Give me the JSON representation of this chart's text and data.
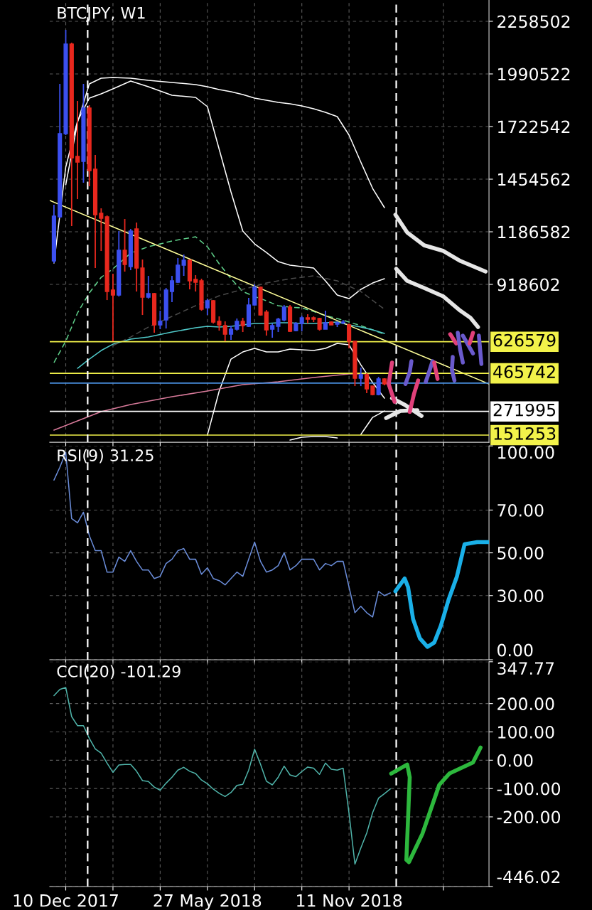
{
  "chart_data": [
    {
      "type": "candlestick",
      "title": "BTCJPY, W1",
      "x": [
        "2017-11-26",
        "2017-12-03",
        "2017-12-10",
        "2017-12-17",
        "2017-12-24",
        "2017-12-31",
        "2018-01-07",
        "2018-01-14",
        "2018-01-21",
        "2018-01-28",
        "2018-02-04",
        "2018-02-11",
        "2018-02-18",
        "2018-02-25",
        "2018-03-04",
        "2018-03-11",
        "2018-03-18",
        "2018-03-25",
        "2018-04-01",
        "2018-04-08",
        "2018-04-15",
        "2018-04-22",
        "2018-04-29",
        "2018-05-06",
        "2018-05-13",
        "2018-05-20",
        "2018-05-27",
        "2018-06-03",
        "2018-06-10",
        "2018-06-17",
        "2018-06-24",
        "2018-07-01",
        "2018-07-08",
        "2018-07-15",
        "2018-07-22",
        "2018-07-29",
        "2018-08-05",
        "2018-08-12",
        "2018-08-19",
        "2018-08-26",
        "2018-09-02",
        "2018-09-09",
        "2018-09-16",
        "2018-09-23",
        "2018-09-30",
        "2018-10-07",
        "2018-10-14",
        "2018-10-21",
        "2018-10-28",
        "2018-11-04",
        "2018-11-11",
        "2018-11-18",
        "2018-11-25",
        "2018-12-02",
        "2018-12-09",
        "2018-12-16",
        "2018-12-23"
      ],
      "ohlc": [
        [
          1038100,
          1324200,
          1027200,
          1266200
        ],
        [
          1262600,
          1939700,
          1255400,
          1686300
        ],
        [
          1686300,
          2214900,
          1679000,
          2142500
        ],
        [
          2142500,
          2149700,
          1215500,
          1563100
        ],
        [
          1570400,
          1852800,
          1353100,
          1541400
        ],
        [
          1545000,
          1939700,
          1436400,
          1816600
        ],
        [
          1816600,
          1831100,
          1418300,
          1498000
        ],
        [
          1505200,
          1577600,
          1001900,
          1273500
        ],
        [
          1280700,
          1306000,
          1088800,
          1255400
        ],
        [
          1262600,
          1269800,
          838900,
          882400
        ],
        [
          889600,
          972900,
          628900,
          864300
        ],
        [
          864300,
          1190200,
          857000,
          1092400
        ],
        [
          1092400,
          1251700,
          983800,
          1020000
        ],
        [
          1009100,
          1201000,
          991000,
          1190200
        ],
        [
          1201000,
          1233600,
          882400,
          1001900
        ],
        [
          1001900,
          1045300,
          762900,
          853400
        ],
        [
          853400,
          962100,
          846200,
          871500
        ],
        [
          871500,
          875100,
          672400,
          712200
        ],
        [
          712200,
          784600,
          690500,
          730300
        ],
        [
          737500,
          900500,
          694100,
          889600
        ],
        [
          882400,
          962100,
          828100,
          936700
        ],
        [
          929500,
          1052600,
          925800,
          1016400
        ],
        [
          1016400,
          1070700,
          962100,
          1041700
        ],
        [
          1041700,
          1045300,
          893300,
          936700
        ],
        [
          943900,
          965700,
          882400,
          929500
        ],
        [
          936700,
          947600,
          784600,
          791900
        ],
        [
          799100,
          846200,
          762900,
          835300
        ],
        [
          835300,
          838900,
          719400,
          726700
        ],
        [
          730300,
          755700,
          683200,
          712200
        ],
        [
          708600,
          730300,
          628900,
          665100
        ],
        [
          665100,
          708600,
          636200,
          690500
        ],
        [
          690500,
          744800,
          683200,
          730300
        ],
        [
          730300,
          748400,
          676000,
          708600
        ],
        [
          705000,
          849800,
          701300,
          813600
        ],
        [
          813600,
          918600,
          810000,
          904100
        ],
        [
          904100,
          907700,
          759300,
          762900
        ],
        [
          777400,
          788200,
          657900,
          686900
        ],
        [
          690500,
          719400,
          647000,
          708600
        ],
        [
          705000,
          748400,
          676000,
          741200
        ],
        [
          737500,
          813600,
          730300,
          802700
        ],
        [
          802700,
          813600,
          676000,
          679600
        ],
        [
          683200,
          726700,
          679600,
          719400
        ],
        [
          719400,
          759300,
          679600,
          748400
        ],
        [
          748400,
          766500,
          719400,
          741200
        ],
        [
          748400,
          755700,
          726700,
          741200
        ],
        [
          744800,
          748400,
          683200,
          690500
        ],
        [
          690500,
          784600,
          690500,
          723100
        ],
        [
          726700,
          730300,
          712200,
          712200
        ],
        [
          715800,
          730300,
          701300,
          723100
        ],
        [
          723100,
          737500,
          715800,
          726700
        ],
        [
          712200,
          719400,
          592700,
          628900
        ],
        [
          628900,
          628900,
          400800,
          440600
        ],
        [
          440600,
          494900,
          400800,
          458700
        ],
        [
          458700,
          466000,
          364600,
          386300
        ],
        [
          400800,
          400800,
          353700,
          357300
        ],
        [
          357300,
          447900,
          353700,
          437000
        ],
        [
          437000,
          440600,
          404400,
          411700
        ]
      ],
      "colors": [
        "#3c50f0",
        "#3c50f0",
        "#3c50f0",
        "#e8281e",
        "#e8281e",
        "#3c50f0",
        "#e8281e",
        "#e8281e",
        "#e8281e",
        "#e8281e",
        "#e8281e",
        "#3c50f0",
        "#e8281e",
        "#3c50f0",
        "#e8281e",
        "#e8281e",
        "#3c50f0",
        "#e8281e",
        "#3c50f0",
        "#3c50f0",
        "#3c50f0",
        "#3c50f0",
        "#3c50f0",
        "#e8281e",
        "#e8281e",
        "#e8281e",
        "#3c50f0",
        "#e8281e",
        "#e8281e",
        "#e8281e",
        "#3c50f0",
        "#3c50f0",
        "#e8281e",
        "#3c50f0",
        "#3c50f0",
        "#e8281e",
        "#e8281e",
        "#3c50f0",
        "#3c50f0",
        "#3c50f0",
        "#e8281e",
        "#3c50f0",
        "#3c50f0",
        "#e8281e",
        "#e8281e",
        "#e8281e",
        "#3c50f0",
        "#e8281e",
        "#3c50f0",
        "#3c50f0",
        "#e8281e",
        "#e8281e",
        "#3c50f0",
        "#e8281e",
        "#e8281e",
        "#3c50f0",
        "#e8281e"
      ],
      "series": [
        {
          "type": "line",
          "color": "#ffffff",
          "x": [
            "2017-12-10",
            "2017-12-24",
            "2018-01-07",
            "2018-01-21",
            "2018-02-04",
            "2018-02-25",
            "2018-03-18",
            "2018-04-15",
            "2018-05-13",
            "2018-05-27",
            "2018-06-10",
            "2018-06-24",
            "2018-07-08",
            "2018-07-22",
            "2018-08-05",
            "2018-08-19",
            "2018-09-02",
            "2018-09-16",
            "2018-09-30",
            "2018-10-14",
            "2018-10-28",
            "2018-11-11",
            "2018-11-25",
            "2018-12-09",
            "2018-12-23"
          ],
          "values": [
            1425500,
            1744200,
            1939700,
            1968700,
            1972300,
            1968700,
            1957800,
            1947000,
            1936200,
            1925300,
            1910800,
            1899900,
            1885400,
            1867300,
            1856400,
            1845600,
            1838400,
            1827500,
            1813000,
            1794900,
            1773200,
            1679000,
            1541400,
            1407400,
            1309700
          ]
        },
        {
          "type": "line",
          "color": "#ffffff",
          "x": [
            "2017-11-26",
            "2017-12-10",
            "2017-12-24",
            "2018-01-07",
            "2018-01-21",
            "2018-02-04",
            "2018-02-25",
            "2018-03-18",
            "2018-04-15",
            "2018-05-13",
            "2018-05-27",
            "2018-06-10",
            "2018-06-24",
            "2018-07-08",
            "2018-07-22",
            "2018-08-05",
            "2018-08-19",
            "2018-09-02",
            "2018-09-16",
            "2018-09-30",
            "2018-10-14",
            "2018-10-28",
            "2018-11-11",
            "2018-11-25",
            "2018-12-09",
            "2018-12-23"
          ],
          "values": [
            1027200,
            1516100,
            1751400,
            1867300,
            1889000,
            1914400,
            1954200,
            1925300,
            1881800,
            1870900,
            1823900,
            1606600,
            1389300,
            1190200,
            1125000,
            1081600,
            1034500,
            1016400,
            1009100,
            1001900,
            936700,
            864300,
            846200,
            893300,
            925800,
            947600
          ]
        },
        {
          "type": "line",
          "color": "#ffffff",
          "x": [
            "2018-05-27",
            "2018-06-10",
            "2018-06-24",
            "2018-07-08",
            "2018-07-22",
            "2018-08-05",
            "2018-08-19",
            "2018-09-02",
            "2018-09-16",
            "2018-09-30",
            "2018-10-14",
            "2018-10-28",
            "2018-11-11",
            "2018-11-25",
            "2018-12-09",
            "2018-12-23"
          ],
          "values": [
            150900,
            375500,
            538400,
            574600,
            592700,
            574600,
            574600,
            589100,
            585500,
            581900,
            592700,
            618100,
            610800,
            509400,
            418900,
            339200
          ]
        },
        {
          "type": "line",
          "color": "#ffffff",
          "x": [
            "2018-09-02",
            "2018-09-16",
            "2018-09-30",
            "2018-10-14",
            "2018-10-28",
            "2018-11-11",
            "2018-11-25",
            "2018-12-09",
            "2018-12-23"
          ],
          "values": [
            125600,
            140100,
            143700,
            143700,
            136500,
            null,
            154600,
            241500,
            274100
          ]
        },
        {
          "type": "line",
          "color": "#5fd08a",
          "line_style": "dashed",
          "x": [
            "2017-11-26",
            "2017-12-10",
            "2017-12-24",
            "2018-01-07",
            "2018-01-21",
            "2018-02-04",
            "2018-02-25",
            "2018-03-18",
            "2018-04-15",
            "2018-05-13",
            "2018-05-27",
            "2018-06-10",
            "2018-06-24",
            "2018-07-08",
            "2018-07-22",
            "2018-08-05",
            "2018-08-19",
            "2018-09-02",
            "2018-09-16",
            "2018-09-30",
            "2018-10-14",
            "2018-10-28",
            "2018-11-11",
            "2018-11-25",
            "2018-12-09",
            "2018-12-23"
          ],
          "values": [
            520300,
            628900,
            773800,
            875100,
            954800,
            998300,
            1077900,
            1110500,
            1139500,
            1161200,
            1110500,
            1023600,
            947600,
            882400,
            857000,
            835300,
            810000,
            802700,
            799100,
            781000,
            759300,
            744800,
            726700,
            708600,
            686900,
            665100
          ]
        },
        {
          "type": "line",
          "color": "#4fc8c8",
          "x": [
            "2017-12-24",
            "2018-01-07",
            "2018-01-21",
            "2018-02-04",
            "2018-02-25",
            "2018-03-18",
            "2018-04-15",
            "2018-05-13",
            "2018-05-27",
            "2018-06-10",
            "2018-06-24",
            "2018-07-08",
            "2018-07-22",
            "2018-08-05",
            "2018-08-19",
            "2018-09-02",
            "2018-09-16",
            "2018-09-30",
            "2018-10-14",
            "2018-10-28",
            "2018-11-11",
            "2018-11-25",
            "2018-12-09",
            "2018-12-23"
          ],
          "values": [
            491300,
            538400,
            581900,
            614400,
            639800,
            650600,
            676000,
            697700,
            705000,
            701300,
            705000,
            712200,
            719400,
            719400,
            723100,
            723100,
            719400,
            719400,
            723100,
            726700,
            712200,
            701300,
            686900,
            668700
          ]
        },
        {
          "type": "line",
          "color": "#d87a9a",
          "x": [
            "2017-11-26",
            "2017-12-24",
            "2018-01-21",
            "2018-02-25",
            "2018-04-15",
            "2018-05-27",
            "2018-07-08",
            "2018-08-19",
            "2018-09-30",
            "2018-11-11",
            "2018-12-23"
          ],
          "values": [
            176300,
            223400,
            270400,
            306600,
            346500,
            375500,
            408000,
            422500,
            444200,
            462400,
            466000
          ]
        },
        {
          "type": "line",
          "color": "#4a4a4a",
          "line_style": "dashed",
          "x": [
            "2018-02-04",
            "2018-02-25",
            "2018-03-18",
            "2018-04-15",
            "2018-05-13",
            "2018-06-10",
            "2018-07-08",
            "2018-08-05",
            "2018-09-02",
            "2018-09-30",
            "2018-10-28",
            "2018-11-25",
            "2018-12-23"
          ],
          "values": [
            607200,
            650600,
            701300,
            755700,
            810000,
            860700,
            893300,
            925800,
            947600,
            962100,
            936700,
            882400,
            791900
          ]
        },
        {
          "type": "line",
          "color": "#ffff99",
          "x": [
            "2017-11-21",
            "2019-04-26"
          ],
          "values": [
            1345900,
            411700
          ]
        },
        {
          "type": "line",
          "color": "#e6e6e6",
          "x": [
            "2019-01-05",
            "2019-01-19",
            "2019-02-08",
            "2019-03-03",
            "2019-03-23",
            "2019-04-22"
          ],
          "values": [
            1273500,
            1183000,
            1117800,
            1088800,
            1038100,
            983800
          ]
        },
        {
          "type": "line",
          "color": "#e6e6e6",
          "x": [
            "2019-01-06",
            "2019-01-19",
            "2019-02-08",
            "2019-03-03",
            "2019-03-23",
            "2019-04-04",
            "2019-04-13"
          ],
          "values": [
            998300,
            936700,
            900500,
            857000,
            784600,
            748400,
            701300
          ]
        },
        {
          "type": "line",
          "color": "#e6e6e6",
          "x": [
            "2019-01-01",
            "2019-01-17",
            "2019-02-05"
          ],
          "values": [
            339200,
            303000,
            248700
          ]
        },
        {
          "type": "line",
          "color": "#e6e6e6",
          "x": [
            "2018-12-25",
            "2019-01-11",
            "2019-01-31"
          ],
          "values": [
            237900,
            274100,
            277700
          ]
        },
        {
          "type": "line",
          "color": "#e0407a",
          "x": [
            "2019-01-01",
            "2018-12-28",
            "2019-01-04"
          ],
          "values": [
            520300,
            411700,
            321100
          ]
        },
        {
          "type": "line",
          "color": "#6a5acd",
          "x": [
            "2019-01-24",
            "2019-01-22",
            "2019-01-17"
          ],
          "values": [
            527500,
            473200,
            411700
          ]
        },
        {
          "type": "line",
          "color": "#e0407a",
          "x": [
            "2019-02-01",
            "2019-01-27",
            "2019-01-22"
          ],
          "values": [
            429700,
            360100,
            269500
          ]
        },
        {
          "type": "line",
          "color": "#6a5acd",
          "x": [
            "2019-02-18",
            "2019-02-14",
            "2019-02-10"
          ],
          "values": [
            527500,
            473200,
            422500
          ]
        },
        {
          "type": "line",
          "color": "#e0407a",
          "x": [
            "2019-02-20",
            "2019-02-24"
          ],
          "values": [
            520300,
            437000
          ]
        },
        {
          "type": "line",
          "color": "#6a5acd",
          "x": [
            "2019-03-14",
            "2019-03-13",
            "2019-03-16"
          ],
          "values": [
            549200,
            484100,
            429700
          ]
        },
        {
          "type": "line",
          "color": "#e0407a",
          "x": [
            "2019-03-11",
            "2019-03-18"
          ],
          "values": [
            665100,
            618100
          ]
        },
        {
          "type": "line",
          "color": "#6a5acd",
          "x": [
            "2019-03-20",
            "2019-03-23",
            "2019-03-26"
          ],
          "values": [
            672400,
            581900,
            520300
          ]
        },
        {
          "type": "line",
          "color": "#6a5acd",
          "x": [
            "2019-03-26",
            "2019-04-07"
          ],
          "values": [
            657900,
            567400
          ]
        },
        {
          "type": "line",
          "color": "#e0407a",
          "x": [
            "2019-04-07",
            "2019-04-03"
          ],
          "values": [
            672400,
            618100
          ]
        },
        {
          "type": "line",
          "color": "#6a5acd",
          "x": [
            "2019-04-14",
            "2019-04-17"
          ],
          "values": [
            657900,
            513000
          ]
        }
      ],
      "ref_lines": [
        {
          "axis": "y",
          "value": 626579,
          "label": "626579",
          "color": "#f2f24a"
        },
        {
          "axis": "y",
          "value": 465742,
          "label": "465742",
          "color": "#f2f24a"
        },
        {
          "axis": "y",
          "value": 416000,
          "color": "#4a90e2"
        },
        {
          "axis": "y",
          "value": 271995,
          "label": "271995",
          "color": "#ffffff"
        },
        {
          "axis": "y",
          "value": 151253,
          "label": "151253",
          "color": "#f2f24a"
        },
        {
          "axis": "x",
          "value": "2018-01-05",
          "color": "#ffffff",
          "line_style": "dashed"
        },
        {
          "axis": "x",
          "value": "2019-01-06",
          "color": "#ffffff",
          "line_style": "dashed"
        }
      ],
      "xlim": [
        "2017-11-21",
        "2019-04-26"
      ],
      "xticks": [
        {
          "value": "2017-12-10",
          "label": null
        },
        {
          "value": "2018-02-04",
          "label": null
        },
        {
          "value": "2018-04-01",
          "label": null
        },
        {
          "value": "2018-05-27",
          "label": null
        },
        {
          "value": "2018-07-22",
          "label": null
        },
        {
          "value": "2018-09-16",
          "label": null
        },
        {
          "value": "2018-11-11",
          "label": null
        },
        {
          "value": "2019-03-03",
          "label": null
        }
      ],
      "ylim": [
        114700,
        2367000
      ],
      "yticks": [
        2258502,
        1990522,
        1722542,
        1454562,
        1186582,
        918602
      ],
      "grid": true,
      "tick_labels": "y"
    },
    {
      "type": "line",
      "title": "RSI(9) 31.25",
      "x": [
        "2017-11-26",
        "2017-12-03",
        "2017-12-10",
        "2017-12-17",
        "2017-12-24",
        "2017-12-31",
        "2018-01-07",
        "2018-01-14",
        "2018-01-21",
        "2018-01-28",
        "2018-02-04",
        "2018-02-11",
        "2018-02-18",
        "2018-02-25",
        "2018-03-04",
        "2018-03-11",
        "2018-03-18",
        "2018-03-25",
        "2018-04-01",
        "2018-04-08",
        "2018-04-15",
        "2018-04-22",
        "2018-04-29",
        "2018-05-06",
        "2018-05-13",
        "2018-05-20",
        "2018-05-27",
        "2018-06-03",
        "2018-06-10",
        "2018-06-17",
        "2018-06-24",
        "2018-07-01",
        "2018-07-08",
        "2018-07-15",
        "2018-07-22",
        "2018-07-29",
        "2018-08-05",
        "2018-08-12",
        "2018-08-19",
        "2018-08-26",
        "2018-09-02",
        "2018-09-09",
        "2018-09-16",
        "2018-09-23",
        "2018-09-30",
        "2018-10-07",
        "2018-10-14",
        "2018-10-21",
        "2018-10-28",
        "2018-11-04",
        "2018-11-11",
        "2018-11-18",
        "2018-11-25",
        "2018-12-02",
        "2018-12-09",
        "2018-12-16",
        "2018-12-23",
        "2018-12-30"
      ],
      "series": [
        {
          "color": "#6a8cd8",
          "values": [
            84,
            90,
            97,
            66,
            64,
            69,
            58,
            51,
            51,
            41,
            41,
            48,
            46,
            51,
            46,
            42,
            42,
            38,
            39,
            45,
            47,
            51,
            52,
            47,
            47,
            40,
            43,
            38,
            37,
            35,
            38,
            41,
            39,
            47,
            55,
            46,
            41,
            42,
            44,
            50,
            42,
            44,
            47,
            47,
            47,
            42,
            45,
            44,
            46,
            46,
            34,
            22,
            25,
            22,
            20,
            32,
            30,
            31.25
          ]
        },
        {
          "color": "#1ab0e8",
          "x": [
            "2019-01-05",
            "2019-01-16",
            "2019-01-20",
            "2019-01-26",
            "2019-02-03",
            "2019-02-12",
            "2019-02-20",
            "2019-02-28",
            "2019-03-09",
            "2019-03-19",
            "2019-03-28",
            "2019-04-12",
            "2019-04-26"
          ],
          "values": [
            32,
            38,
            34,
            19,
            10,
            6,
            8,
            16,
            28,
            39,
            54,
            55,
            55
          ]
        }
      ],
      "ref_lines": [
        {
          "axis": "x",
          "value": "2018-01-05",
          "color": "#ffffff",
          "line_style": "dashed"
        },
        {
          "axis": "x",
          "value": "2019-01-06",
          "color": "#ffffff",
          "line_style": "dashed"
        }
      ],
      "xlim": [
        "2017-11-21",
        "2019-04-26"
      ],
      "xticks": [
        {
          "value": "2017-12-10",
          "label": null
        },
        {
          "value": "2018-02-04",
          "label": null
        },
        {
          "value": "2018-04-01",
          "label": null
        },
        {
          "value": "2018-05-27",
          "label": null
        },
        {
          "value": "2018-07-22",
          "label": null
        },
        {
          "value": "2018-09-16",
          "label": null
        },
        {
          "value": "2018-11-11",
          "label": null
        },
        {
          "value": "2019-03-03",
          "label": null
        }
      ],
      "ylim": [
        0,
        100
      ],
      "yticks": [
        {
          "value": 100,
          "label": "100.00"
        },
        {
          "value": 70,
          "label": "70.00"
        },
        {
          "value": 50,
          "label": "50.00"
        },
        {
          "value": 30,
          "label": "30.00"
        },
        {
          "value": 0,
          "label": "0.00"
        }
      ],
      "grid": true,
      "tick_labels": "y"
    },
    {
      "type": "line",
      "title": "CCI(20) -101.29",
      "x": [
        "2017-11-26",
        "2017-12-03",
        "2017-12-10",
        "2017-12-17",
        "2017-12-24",
        "2017-12-31",
        "2018-01-07",
        "2018-01-14",
        "2018-01-21",
        "2018-01-28",
        "2018-02-04",
        "2018-02-11",
        "2018-02-18",
        "2018-02-25",
        "2018-03-04",
        "2018-03-11",
        "2018-03-18",
        "2018-03-25",
        "2018-04-01",
        "2018-04-08",
        "2018-04-15",
        "2018-04-22",
        "2018-04-29",
        "2018-05-06",
        "2018-05-13",
        "2018-05-20",
        "2018-05-27",
        "2018-06-03",
        "2018-06-10",
        "2018-06-17",
        "2018-06-24",
        "2018-07-01",
        "2018-07-08",
        "2018-07-15",
        "2018-07-22",
        "2018-07-29",
        "2018-08-05",
        "2018-08-12",
        "2018-08-19",
        "2018-08-26",
        "2018-09-02",
        "2018-09-09",
        "2018-09-16",
        "2018-09-23",
        "2018-09-30",
        "2018-10-07",
        "2018-10-14",
        "2018-10-21",
        "2018-10-28",
        "2018-11-04",
        "2018-11-11",
        "2018-11-18",
        "2018-11-25",
        "2018-12-02",
        "2018-12-09",
        "2018-12-16",
        "2018-12-23",
        "2018-12-30"
      ],
      "series": [
        {
          "color": "#4fb3a9",
          "values": [
            228,
            250,
            257,
            154,
            122,
            122,
            77,
            40,
            25,
            -10,
            -43,
            -17,
            -15,
            -15,
            -39,
            -72,
            -75,
            -95,
            -106,
            -81,
            -60,
            -35,
            -25,
            -39,
            -47,
            -70,
            -83,
            -102,
            -117,
            -128,
            -114,
            -89,
            -85,
            -35,
            39,
            -14,
            -74,
            -87,
            -60,
            -21,
            -52,
            -58,
            -40,
            -24,
            -28,
            -50,
            -10,
            -32,
            -35,
            -28,
            -188,
            -367,
            -310,
            -257,
            -185,
            -134,
            -118,
            -101.29
          ]
        },
        {
          "color": "#2db83d",
          "x": [
            "2018-12-31",
            "2019-01-19",
            "2019-01-22",
            "2019-01-18",
            "2019-01-21",
            "2019-02-06",
            "2019-02-26",
            "2019-03-10",
            "2019-04-07",
            "2019-04-16"
          ],
          "values": [
            -47,
            -15,
            -60,
            -352,
            -360,
            -260,
            -87,
            -47,
            -8,
            45
          ]
        }
      ],
      "ref_lines": [
        {
          "axis": "x",
          "value": "2018-01-05",
          "color": "#ffffff",
          "line_style": "dashed"
        },
        {
          "axis": "x",
          "value": "2019-01-06",
          "color": "#ffffff",
          "line_style": "dashed"
        }
      ],
      "xlim": [
        "2017-11-21",
        "2019-04-26"
      ],
      "xticks": [
        {
          "value": "2017-12-10",
          "label": "10 Dec 2017"
        },
        {
          "value": "2018-02-04",
          "label": null
        },
        {
          "value": "2018-04-01",
          "label": null
        },
        {
          "value": "2018-05-27",
          "label": "27 May 2018"
        },
        {
          "value": "2018-07-22",
          "label": null
        },
        {
          "value": "2018-09-16",
          "label": null
        },
        {
          "value": "2018-11-11",
          "label": "11 Nov 2018"
        },
        {
          "value": "2019-03-03",
          "label": null
        }
      ],
      "ylim": [
        -446.02,
        347.77
      ],
      "yticks": [
        347.77,
        {
          "value": 200,
          "label": "200.00"
        },
        {
          "value": 100,
          "label": "100.00"
        },
        {
          "value": 0,
          "label": "0.00"
        },
        {
          "value": -100,
          "label": "-100.00"
        },
        {
          "value": -200,
          "label": "-200.00"
        },
        -446.02
      ],
      "grid": true
    }
  ]
}
